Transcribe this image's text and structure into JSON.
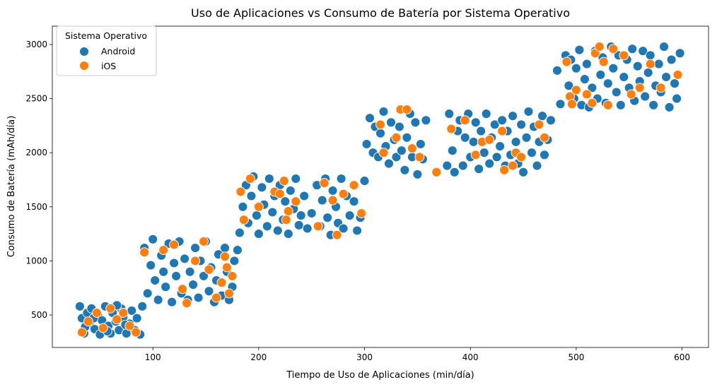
{
  "chart_data": {
    "type": "scatter",
    "title": "Uso de Aplicaciones vs Consumo de Batería por Sistema Operativo",
    "xlabel": "Tiempo de Uso de Aplicaciones (min/día)",
    "ylabel": "Consumo de Batería (mAh/día)",
    "xlim": [
      5,
      625
    ],
    "ylim": [
      200,
      3170
    ],
    "xticks": [
      100,
      200,
      300,
      400,
      500,
      600
    ],
    "yticks": [
      500,
      1000,
      1500,
      2000,
      2500,
      3000
    ],
    "grid": false,
    "legend": {
      "title": "Sistema Operativo",
      "placement": "top-left"
    },
    "series": [
      {
        "name": "Android",
        "color": "#1f77b4",
        "points": [
          [
            31,
            580
          ],
          [
            33,
            470
          ],
          [
            35,
            330
          ],
          [
            38,
            520
          ],
          [
            40,
            420
          ],
          [
            42,
            560
          ],
          [
            45,
            370
          ],
          [
            48,
            500
          ],
          [
            50,
            320
          ],
          [
            52,
            450
          ],
          [
            55,
            580
          ],
          [
            58,
            400
          ],
          [
            60,
            330
          ],
          [
            62,
            520
          ],
          [
            65,
            440
          ],
          [
            68,
            360
          ],
          [
            70,
            560
          ],
          [
            72,
            480
          ],
          [
            75,
            330
          ],
          [
            78,
            420
          ],
          [
            80,
            540
          ],
          [
            83,
            360
          ],
          [
            85,
            470
          ],
          [
            88,
            320
          ],
          [
            90,
            580
          ],
          [
            44,
            470
          ],
          [
            57,
            350
          ],
          [
            66,
            590
          ],
          [
            74,
            410
          ],
          [
            36,
            390
          ],
          [
            92,
            1120
          ],
          [
            95,
            700
          ],
          [
            98,
            960
          ],
          [
            100,
            1200
          ],
          [
            102,
            820
          ],
          [
            105,
            640
          ],
          [
            108,
            1050
          ],
          [
            110,
            900
          ],
          [
            112,
            760
          ],
          [
            115,
            1160
          ],
          [
            118,
            620
          ],
          [
            120,
            980
          ],
          [
            122,
            860
          ],
          [
            125,
            1180
          ],
          [
            127,
            700
          ],
          [
            130,
            1020
          ],
          [
            133,
            640
          ],
          [
            135,
            900
          ],
          [
            138,
            780
          ],
          [
            140,
            1120
          ],
          [
            143,
            660
          ],
          [
            145,
            1000
          ],
          [
            148,
            860
          ],
          [
            150,
            1180
          ],
          [
            153,
            720
          ],
          [
            155,
            940
          ],
          [
            158,
            620
          ],
          [
            160,
            820
          ],
          [
            162,
            1060
          ],
          [
            165,
            680
          ],
          [
            168,
            1120
          ],
          [
            170,
            900
          ],
          [
            172,
            640
          ],
          [
            175,
            760
          ],
          [
            177,
            1000
          ],
          [
            180,
            1100
          ],
          [
            182,
            1260
          ],
          [
            185,
            1500
          ],
          [
            188,
            1700
          ],
          [
            190,
            1350
          ],
          [
            193,
            1600
          ],
          [
            195,
            1780
          ],
          [
            198,
            1420
          ],
          [
            200,
            1250
          ],
          [
            203,
            1680
          ],
          [
            205,
            1520
          ],
          [
            208,
            1320
          ],
          [
            210,
            1760
          ],
          [
            213,
            1450
          ],
          [
            215,
            1600
          ],
          [
            218,
            1280
          ],
          [
            220,
            1700
          ],
          [
            223,
            1380
          ],
          [
            225,
            1550
          ],
          [
            228,
            1250
          ],
          [
            230,
            1650
          ],
          [
            233,
            1480
          ],
          [
            235,
            1760
          ],
          [
            238,
            1330
          ],
          [
            240,
            1420
          ],
          [
            243,
            1600
          ],
          [
            246,
            1300
          ],
          [
            250,
            1440
          ],
          [
            255,
            1700
          ],
          [
            258,
            1320
          ],
          [
            260,
            1560
          ],
          [
            263,
            1760
          ],
          [
            265,
            1400
          ],
          [
            268,
            1240
          ],
          [
            270,
            1650
          ],
          [
            273,
            1500
          ],
          [
            275,
            1350
          ],
          [
            278,
            1760
          ],
          [
            280,
            1300
          ],
          [
            283,
            1600
          ],
          [
            286,
            1420
          ],
          [
            290,
            1550
          ],
          [
            293,
            1280
          ],
          [
            296,
            1400
          ],
          [
            300,
            1740
          ],
          [
            302,
            2080
          ],
          [
            305,
            2320
          ],
          [
            308,
            2000
          ],
          [
            310,
            2240
          ],
          [
            313,
            1960
          ],
          [
            315,
            2180
          ],
          [
            318,
            2380
          ],
          [
            320,
            2060
          ],
          [
            323,
            1900
          ],
          [
            325,
            2280
          ],
          [
            328,
            2120
          ],
          [
            330,
            1960
          ],
          [
            333,
            2240
          ],
          [
            335,
            2020
          ],
          [
            338,
            1840
          ],
          [
            340,
            2140
          ],
          [
            343,
            2360
          ],
          [
            345,
            1960
          ],
          [
            348,
            2280
          ],
          [
            350,
            1800
          ],
          [
            353,
            2080
          ],
          [
            355,
            1940
          ],
          [
            358,
            2300
          ],
          [
            378,
            1880
          ],
          [
            380,
            2360
          ],
          [
            383,
            2020
          ],
          [
            385,
            1820
          ],
          [
            388,
            2200
          ],
          [
            390,
            2300
          ],
          [
            393,
            1880
          ],
          [
            395,
            2140
          ],
          [
            398,
            2360
          ],
          [
            400,
            1960
          ],
          [
            403,
            2100
          ],
          [
            405,
            2280
          ],
          [
            408,
            1850
          ],
          [
            410,
            2200
          ],
          [
            413,
            2000
          ],
          [
            415,
            2360
          ],
          [
            418,
            1900
          ],
          [
            420,
            2140
          ],
          [
            423,
            2260
          ],
          [
            425,
            1960
          ],
          [
            428,
            2060
          ],
          [
            430,
            2300
          ],
          [
            433,
            1880
          ],
          [
            435,
            2200
          ],
          [
            438,
            1980
          ],
          [
            440,
            2340
          ],
          [
            443,
            2100
          ],
          [
            445,
            1900
          ],
          [
            448,
            2260
          ],
          [
            450,
            1820
          ],
          [
            453,
            2140
          ],
          [
            455,
            2380
          ],
          [
            458,
            2000
          ],
          [
            460,
            2240
          ],
          [
            463,
            1880
          ],
          [
            465,
            2100
          ],
          [
            468,
            2340
          ],
          [
            470,
            1980
          ],
          [
            473,
            2120
          ],
          [
            476,
            2300
          ],
          [
            482,
            2760
          ],
          [
            485,
            2450
          ],
          [
            490,
            2900
          ],
          [
            493,
            2620
          ],
          [
            495,
            2860
          ],
          [
            498,
            2500
          ],
          [
            500,
            2780
          ],
          [
            503,
            2950
          ],
          [
            505,
            2440
          ],
          [
            508,
            2680
          ],
          [
            510,
            2820
          ],
          [
            512,
            2420
          ],
          [
            515,
            2600
          ],
          [
            518,
            2940
          ],
          [
            520,
            2500
          ],
          [
            523,
            2720
          ],
          [
            525,
            2880
          ],
          [
            528,
            2460
          ],
          [
            530,
            2640
          ],
          [
            533,
            2980
          ],
          [
            535,
            2780
          ],
          [
            538,
            2560
          ],
          [
            540,
            2900
          ],
          [
            542,
            2440
          ],
          [
            545,
            2700
          ],
          [
            548,
            2860
          ],
          [
            550,
            2600
          ],
          [
            553,
            2960
          ],
          [
            555,
            2480
          ],
          [
            558,
            2800
          ],
          [
            560,
            2660
          ],
          [
            563,
            2940
          ],
          [
            565,
            2520
          ],
          [
            568,
            2740
          ],
          [
            570,
            2900
          ],
          [
            573,
            2440
          ],
          [
            575,
            2620
          ],
          [
            578,
            2820
          ],
          [
            580,
            2560
          ],
          [
            583,
            2980
          ],
          [
            585,
            2700
          ],
          [
            588,
            2420
          ],
          [
            590,
            2860
          ],
          [
            593,
            2640
          ],
          [
            595,
            2500
          ],
          [
            598,
            2920
          ]
        ]
      },
      {
        "name": "iOS",
        "color": "#ff7f0e",
        "points": [
          [
            33,
            340
          ],
          [
            39,
            440
          ],
          [
            47,
            520
          ],
          [
            60,
            560
          ],
          [
            66,
            460
          ],
          [
            72,
            520
          ],
          [
            78,
            400
          ],
          [
            84,
            340
          ],
          [
            53,
            380
          ],
          [
            92,
            1080
          ],
          [
            110,
            1100
          ],
          [
            128,
            740
          ],
          [
            132,
            610
          ],
          [
            140,
            1000
          ],
          [
            148,
            1180
          ],
          [
            153,
            920
          ],
          [
            160,
            660
          ],
          [
            165,
            800
          ],
          [
            170,
            940
          ],
          [
            172,
            700
          ],
          [
            175,
            860
          ],
          [
            168,
            1040
          ],
          [
            120,
            1150
          ],
          [
            183,
            1640
          ],
          [
            186,
            1380
          ],
          [
            192,
            1760
          ],
          [
            200,
            1500
          ],
          [
            215,
            1640
          ],
          [
            220,
            1620
          ],
          [
            224,
            1740
          ],
          [
            228,
            1460
          ],
          [
            235,
            1550
          ],
          [
            256,
            1320
          ],
          [
            262,
            1720
          ],
          [
            270,
            1560
          ],
          [
            274,
            1240
          ],
          [
            280,
            1620
          ],
          [
            290,
            1700
          ],
          [
            297,
            1440
          ],
          [
            226,
            1380
          ],
          [
            315,
            2260
          ],
          [
            318,
            2000
          ],
          [
            330,
            2140
          ],
          [
            334,
            2400
          ],
          [
            340,
            2400
          ],
          [
            345,
            2040
          ],
          [
            352,
            1960
          ],
          [
            368,
            1820
          ],
          [
            382,
            2220
          ],
          [
            395,
            2300
          ],
          [
            405,
            1980
          ],
          [
            411,
            2100
          ],
          [
            418,
            2120
          ],
          [
            430,
            2200
          ],
          [
            432,
            1840
          ],
          [
            440,
            1880
          ],
          [
            443,
            2000
          ],
          [
            448,
            1960
          ],
          [
            465,
            2260
          ],
          [
            470,
            2140
          ],
          [
            491,
            2840
          ],
          [
            494,
            2520
          ],
          [
            496,
            2450
          ],
          [
            500,
            2580
          ],
          [
            510,
            2540
          ],
          [
            515,
            2460
          ],
          [
            518,
            2920
          ],
          [
            522,
            2980
          ],
          [
            526,
            2840
          ],
          [
            530,
            2440
          ],
          [
            535,
            2960
          ],
          [
            545,
            2900
          ],
          [
            552,
            2540
          ],
          [
            560,
            2600
          ],
          [
            570,
            2820
          ],
          [
            580,
            2600
          ],
          [
            596,
            2720
          ]
        ]
      }
    ]
  }
}
